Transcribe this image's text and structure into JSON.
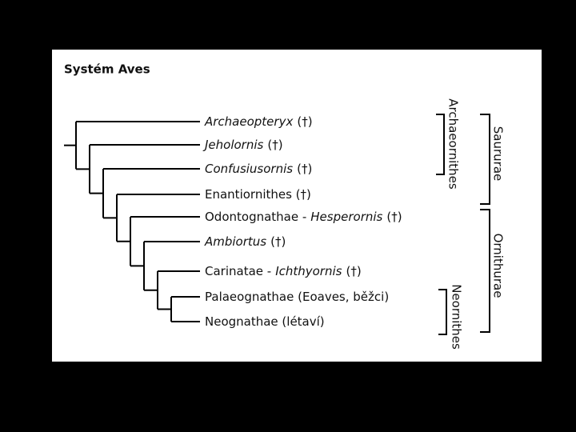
{
  "title": "Systém Aves",
  "leaves": [
    {
      "parts": [
        {
          "text": "Archaeopteryx",
          "italic": true
        },
        {
          "text": "(†)",
          "italic": false
        }
      ]
    },
    {
      "parts": [
        {
          "text": "Jeholornis",
          "italic": true
        },
        {
          "text": "(†)",
          "italic": false
        }
      ]
    },
    {
      "parts": [
        {
          "text": "Confusiusornis",
          "italic": true
        },
        {
          "text": "(†)",
          "italic": false
        }
      ]
    },
    {
      "parts": [
        {
          "text": "Enantiornithes (†)",
          "italic": false
        }
      ]
    },
    {
      "parts": [
        {
          "text": "Odontognathae -",
          "italic": false
        },
        {
          "text": "Hesperornis",
          "italic": true
        },
        {
          "text": "(†)",
          "italic": false
        }
      ]
    },
    {
      "parts": [
        {
          "text": "Ambiortus",
          "italic": true
        },
        {
          "text": "(†)",
          "italic": false
        }
      ]
    },
    {
      "parts": [
        {
          "text": "Carinatae -",
          "italic": false
        },
        {
          "text": "Ichthyornis",
          "italic": true
        },
        {
          "text": "(†)",
          "italic": false
        }
      ]
    },
    {
      "parts": [
        {
          "text": "Palaeognathae (Eoaves, běžci)",
          "italic": false
        }
      ]
    },
    {
      "parts": [
        {
          "text": "Neognathae (létaví)",
          "italic": false
        }
      ]
    }
  ],
  "groups": [
    "Archaeornithes",
    "Saururae",
    "Ornithurae",
    "Neornithes"
  ]
}
